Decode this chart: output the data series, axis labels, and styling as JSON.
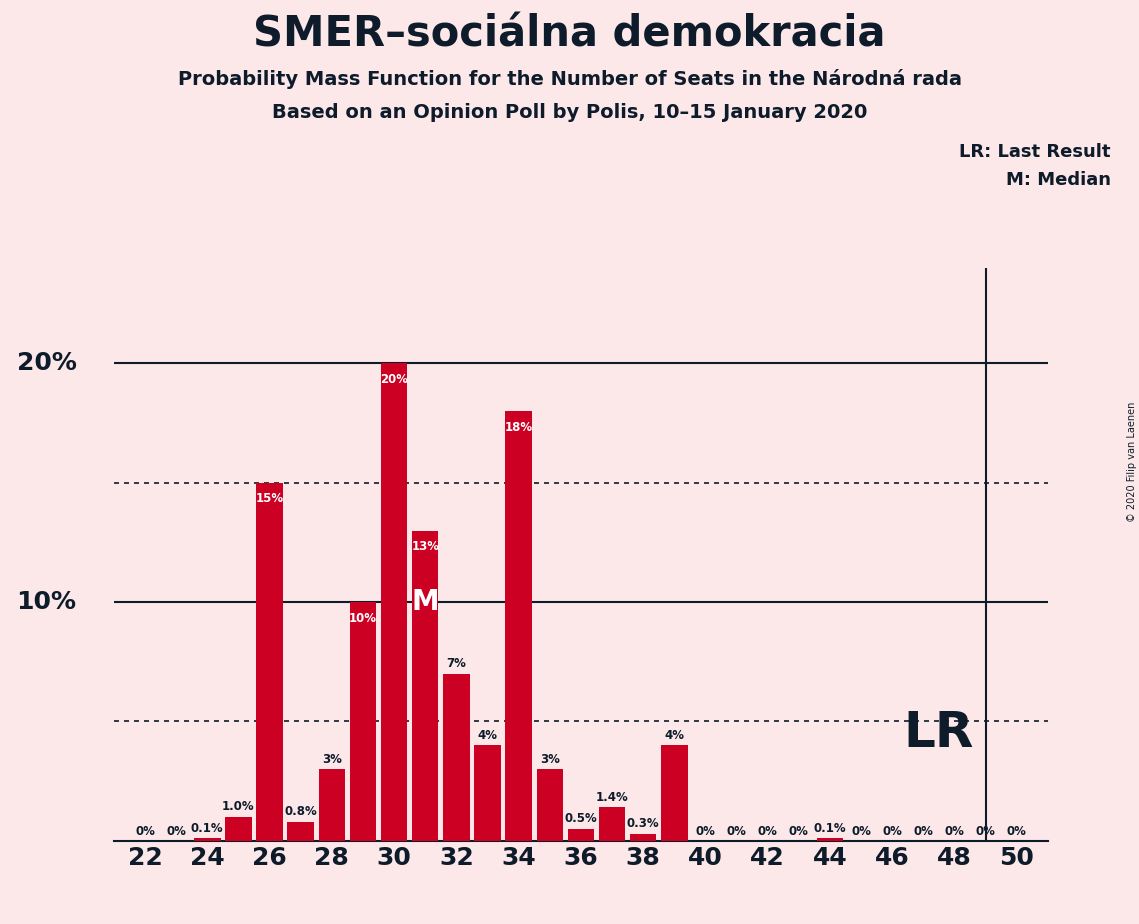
{
  "title": "SMER–sociálna demokracia",
  "subtitle1": "Probability Mass Function for the Number of Seats in the Národná rada",
  "subtitle2": "Based on an Opinion Poll by Polis, 10–15 January 2020",
  "copyright": "© 2020 Filip van Laenen",
  "seats": [
    22,
    23,
    24,
    25,
    26,
    27,
    28,
    29,
    30,
    31,
    32,
    33,
    34,
    35,
    36,
    37,
    38,
    39,
    40,
    41,
    42,
    43,
    44,
    45,
    46,
    47,
    48,
    49,
    50
  ],
  "probabilities": [
    0.0,
    0.0,
    0.1,
    1.0,
    15.0,
    0.8,
    3.0,
    10.0,
    20.0,
    13.0,
    7.0,
    4.0,
    18.0,
    3.0,
    0.5,
    1.4,
    0.3,
    4.0,
    0.0,
    0.0,
    0.0,
    0.0,
    0.1,
    0.0,
    0.0,
    0.0,
    0.0,
    0.0,
    0.0
  ],
  "bar_labels": [
    "0%",
    "0%",
    "0.1%",
    "1.0%",
    "15%",
    "0.8%",
    "3%",
    "10%",
    "20%",
    "13%",
    "7%",
    "4%",
    "18%",
    "3%",
    "0.5%",
    "1.4%",
    "0.3%",
    "4%",
    "0%",
    "0%",
    "0%",
    "0%",
    "0.1%",
    "0%",
    "0%",
    "0%",
    "0%",
    "0%",
    "0%"
  ],
  "bar_color": "#cc0022",
  "background_color": "#fce8e8",
  "text_color": "#0d1b2a",
  "median_seat": 31,
  "last_result_seat": 49,
  "dotted_lines": [
    5.0,
    15.0
  ],
  "solid_lines": [
    10.0,
    20.0
  ],
  "xlim": [
    21,
    51
  ],
  "ylim": [
    0,
    24
  ],
  "legend_lr": "LR: Last Result",
  "legend_m": "M: Median",
  "lr_label": "LR",
  "median_label": "M",
  "lr_label_fontsize": 36,
  "title_fontsize": 30,
  "subtitle_fontsize": 14,
  "ytick_labels_pos": [
    10,
    20
  ],
  "ytick_labels": [
    "10%",
    "20%"
  ]
}
